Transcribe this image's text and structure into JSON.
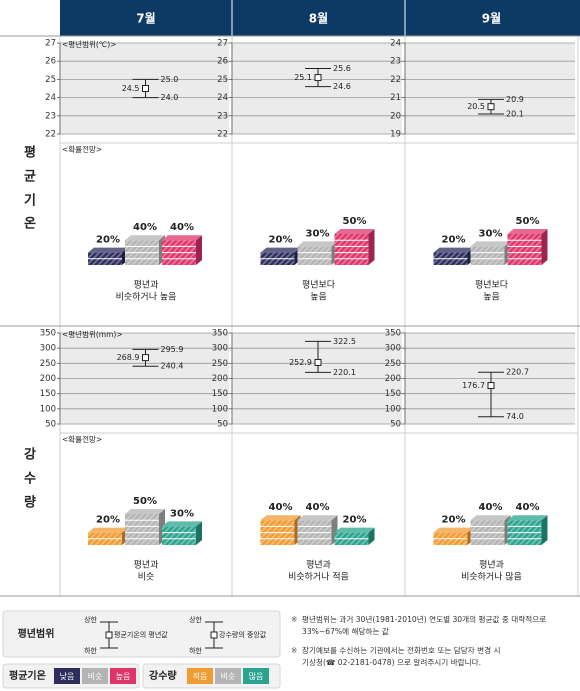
{
  "months": [
    "7월",
    "8월",
    "9월"
  ],
  "sections": [
    {
      "label_chars": [
        "평",
        "균",
        "기",
        "온"
      ],
      "range_title": "<평년범위(℃)>",
      "prob_title": "<확률전망>",
      "axes": [
        {
          "ticks": [
            "27",
            "26",
            "25",
            "24",
            "23",
            "22"
          ],
          "min": 22,
          "max": 27
        },
        {
          "ticks": [
            "27",
            "26",
            "25",
            "24",
            "23",
            "22"
          ],
          "min": 22,
          "max": 27
        },
        {
          "ticks": [
            "24",
            "23",
            "22",
            "21",
            "20",
            "19"
          ],
          "min": 19,
          "max": 24
        }
      ],
      "ranges": [
        {
          "upper": 25.0,
          "mean": 24.5,
          "lower": 24.0,
          "upper_label": "25.0",
          "mean_label": "24.5",
          "lower_label": "24.0"
        },
        {
          "upper": 25.6,
          "mean": 25.1,
          "lower": 24.6,
          "upper_label": "25.6",
          "mean_label": "25.1",
          "lower_label": "24.6"
        },
        {
          "upper": 20.9,
          "mean": 20.5,
          "lower": 20.1,
          "upper_label": "20.9",
          "mean_label": "20.5",
          "lower_label": "20.1"
        }
      ],
      "categories": [
        "낮음",
        "비슷",
        "높음"
      ],
      "colors": [
        "#2e2d5e",
        "#b4b4b4",
        "#e0356b"
      ],
      "probabilities": [
        {
          "values": [
            20,
            40,
            40
          ],
          "labels": [
            "20%",
            "40%",
            "40%"
          ],
          "caption": [
            "평년과",
            "비슷하거나 높음"
          ]
        },
        {
          "values": [
            20,
            30,
            50
          ],
          "labels": [
            "20%",
            "30%",
            "50%"
          ],
          "caption": [
            "평년보다",
            "높음"
          ]
        },
        {
          "values": [
            20,
            30,
            50
          ],
          "labels": [
            "20%",
            "30%",
            "50%"
          ],
          "caption": [
            "평년보다",
            "높음"
          ]
        }
      ]
    },
    {
      "label_chars": [
        "강",
        "수",
        "량"
      ],
      "range_title": "<평년범위(mm)>",
      "prob_title": "<확률전망>",
      "axes": [
        {
          "ticks": [
            "350",
            "300",
            "250",
            "200",
            "150",
            "100",
            "50"
          ],
          "min": 50,
          "max": 350
        },
        {
          "ticks": [
            "350",
            "300",
            "250",
            "200",
            "150",
            "100",
            "50"
          ],
          "min": 50,
          "max": 350
        },
        {
          "ticks": [
            "350",
            "300",
            "250",
            "200",
            "150",
            "100",
            "50"
          ],
          "min": 50,
          "max": 350
        }
      ],
      "ranges": [
        {
          "upper": 295.9,
          "mean": 268.9,
          "lower": 240.4,
          "upper_label": "295.9",
          "mean_label": "268.9",
          "lower_label": "240.4"
        },
        {
          "upper": 322.5,
          "mean": 252.9,
          "lower": 220.1,
          "upper_label": "322.5",
          "mean_label": "252.9",
          "lower_label": "220.1"
        },
        {
          "upper": 220.7,
          "mean": 176.7,
          "lower": 74.0,
          "upper_label": "220.7",
          "mean_label": "176.7",
          "lower_label": "74.0"
        }
      ],
      "categories": [
        "적음",
        "비슷",
        "많음"
      ],
      "colors": [
        "#f29b33",
        "#b4b4b4",
        "#2aa48e"
      ],
      "probabilities": [
        {
          "values": [
            20,
            50,
            30
          ],
          "labels": [
            "20%",
            "50%",
            "30%"
          ],
          "caption": [
            "평년과",
            "비슷"
          ]
        },
        {
          "values": [
            40,
            40,
            20
          ],
          "labels": [
            "40%",
            "40%",
            "20%"
          ],
          "caption": [
            "평년과",
            "비슷하거나 적음"
          ]
        },
        {
          "values": [
            20,
            40,
            40
          ],
          "labels": [
            "20%",
            "40%",
            "40%"
          ],
          "caption": [
            "평년과",
            "비슷하거나 많음"
          ]
        }
      ]
    }
  ],
  "legend": {
    "range_title": "평년범위",
    "upper": "상한",
    "lower": "하한",
    "temp_mean": "평균기온의 평년값",
    "precip_mean": "강수량의 중앙값",
    "temp_title": "평균기온",
    "temp_categories": [
      "낮음",
      "비슷",
      "높음"
    ],
    "precip_title": "강수량",
    "precip_categories": [
      "적음",
      "비슷",
      "많음"
    ]
  },
  "notes": [
    {
      "mark": "※",
      "lines": [
        "평년범위는 과거 30년(1981-2010년) 연도별 30개의 평균값 중 대략적으로",
        "33%~67%에 해당하는 값"
      ]
    },
    {
      "mark": "※",
      "lines": [
        "장기예보를 수신하는 기관에서는 전화번호 또는 담당자 변경 시",
        "기상청(☎ 02-2181-0478) 으로 알려주시기 바랍니다."
      ]
    }
  ],
  "style": {
    "header_bg": "#0d3a64",
    "grid_bg": "#ebebeb",
    "caption_bg": "#f2f2f2"
  },
  "chart_data": [
    {
      "type": "range",
      "title": "평균기온 평년범위(℃)",
      "categories": [
        "7월",
        "8월",
        "9월"
      ],
      "upper": [
        25.0,
        25.6,
        20.9
      ],
      "mean": [
        24.5,
        25.1,
        20.5
      ],
      "lower": [
        24.0,
        24.6,
        20.1
      ]
    },
    {
      "type": "bar",
      "title": "평균기온 확률전망",
      "categories": [
        "7월",
        "8월",
        "9월"
      ],
      "series": [
        {
          "name": "낮음",
          "values": [
            20,
            20,
            20
          ]
        },
        {
          "name": "비슷",
          "values": [
            40,
            30,
            30
          ]
        },
        {
          "name": "높음",
          "values": [
            40,
            50,
            50
          ]
        }
      ]
    },
    {
      "type": "range",
      "title": "강수량 평년범위(mm)",
      "categories": [
        "7월",
        "8월",
        "9월"
      ],
      "upper": [
        295.9,
        322.5,
        220.7
      ],
      "mean": [
        268.9,
        252.9,
        176.7
      ],
      "lower": [
        240.4,
        220.1,
        74.0
      ]
    },
    {
      "type": "bar",
      "title": "강수량 확률전망",
      "categories": [
        "7월",
        "8월",
        "9월"
      ],
      "series": [
        {
          "name": "적음",
          "values": [
            20,
            40,
            20
          ]
        },
        {
          "name": "비슷",
          "values": [
            50,
            40,
            40
          ]
        },
        {
          "name": "많음",
          "values": [
            30,
            20,
            40
          ]
        }
      ]
    }
  ]
}
